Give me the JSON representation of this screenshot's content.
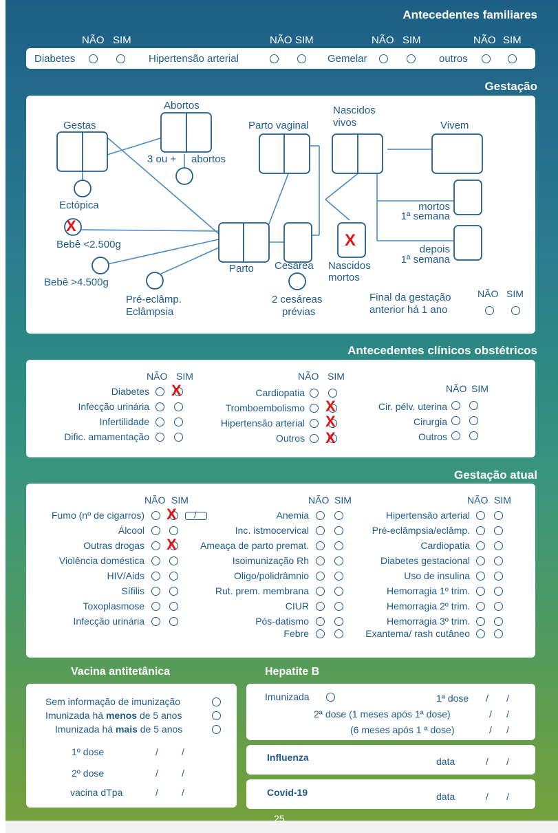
{
  "colors": {
    "accent": "#1f5c8f",
    "mark": "#e01515"
  },
  "page_number": "25",
  "familiares": {
    "title": "Antecedentes familiares",
    "nao": "NÃO",
    "sim": "SIM",
    "items": [
      "Diabetes",
      "Hipertensão arterial",
      "Gemelar",
      "outros"
    ]
  },
  "gestacao": {
    "title": "Gestação",
    "gestas": "Gestas",
    "abortos": "Abortos",
    "tres_ou_mais": "3 ou +",
    "abortos2": "abortos",
    "ectopica": "Ectópica",
    "bebe_menor": "Bebê <2.500g",
    "bebe_maior": "Bebê >4.500g",
    "preeclamp": "Pré-eclâmp.",
    "eclampsia": "Eclâmpsia",
    "parto": "Parto",
    "parto_vaginal": "Parto vaginal",
    "cesarea": "Cesárea",
    "duas_cesareas": "2 cesáreas",
    "previas": "prévias",
    "nascidos_vivos_1": "Nascidos",
    "nascidos_vivos_2": "vivos",
    "vivem": "Vivem",
    "mortos": "mortos",
    "semana1": "1ª semana",
    "depois": "depois",
    "semana2": "1ª semana",
    "nascidos_mortos_1": "Nascidos",
    "nascidos_mortos_2": "mortos",
    "final_1": "Final da gestação",
    "final_2": "anterior há 1 ano",
    "nao": "NÃO",
    "sim": "SIM",
    "mark": "X"
  },
  "clinicos": {
    "title": "Antecedentes clínicos obstétricos",
    "nao": "NÃO",
    "sim": "SIM",
    "mark": "X",
    "col1": [
      "Diabetes",
      "Infecção urinária",
      "Infertilidade",
      "Dific. amamentação"
    ],
    "col2": [
      "Cardiopatia",
      "Tromboembolismo",
      "Hipertensão arterial",
      "Outros"
    ],
    "col3": [
      "Cir. pélv. uterina",
      "Cirurgia",
      "Outros"
    ]
  },
  "atual": {
    "title": "Gestação atual",
    "nao": "NÃO",
    "sim": "SIM",
    "mark": "X",
    "cig_sep": "/",
    "col1": [
      "Fumo (nº de cigarros)",
      "Álcool",
      "Outras drogas",
      "Violência doméstica",
      "HIV/Aids",
      "Sífilis",
      "Toxoplasmose",
      "Infecção urinária"
    ],
    "col2": [
      "Anemia",
      "Inc. istmocervical",
      "Ameaça de parto premat.",
      "Isoimunização Rh",
      "Oligo/polidrâmnio",
      "Rut. prem. membrana",
      "CIUR",
      "Pós-datismo",
      "Febre"
    ],
    "col3": [
      "Hipertensão arterial",
      "Pré-eclâmpsia/eclâmp.",
      "Cardiopatia",
      "Diabetes gestacional",
      "Uso de insulina",
      "Hemorragia 1º trim.",
      "Hemorragia 2º trim.",
      "Hemorragia 3º trim.",
      "Exantema/ rash cutâneo"
    ]
  },
  "vacina": {
    "title": "Vacina antitetânica",
    "sem_info": "Sem informação de imunização",
    "menos_a": "Imunizada há ",
    "menos_b": "menos",
    "menos_c": " de 5 anos",
    "mais_a": "Imunizada há ",
    "mais_b": "mais",
    "mais_c": " de 5 anos",
    "dose1": "1º dose",
    "dose2": "2º dose",
    "dtpa": "vacina dTpa",
    "sep": "/"
  },
  "hepatite": {
    "title": "Hepatite B",
    "imunizada": "Imunizada",
    "dose1": "1ª dose",
    "dose2": "2ª dose (1 meses após 1ª dose)",
    "dose3": "(6 meses após 1 ª dose)",
    "sep": "/"
  },
  "influenza": {
    "title": "Influenza",
    "data": "data",
    "sep": "/"
  },
  "covid": {
    "title": "Covid-19",
    "data": "data",
    "sep": "/"
  }
}
